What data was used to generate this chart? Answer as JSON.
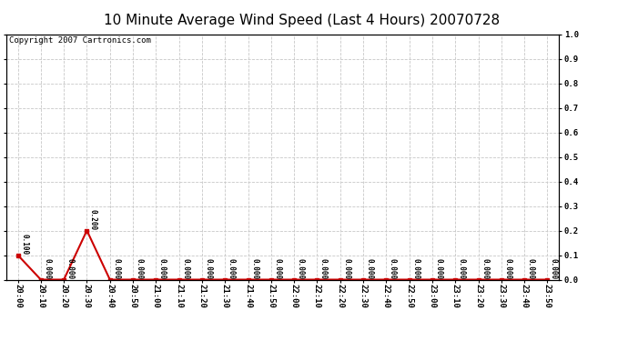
{
  "title": "10 Minute Average Wind Speed (Last 4 Hours) 20070728",
  "copyright_text": "Copyright 2007 Cartronics.com",
  "x_labels": [
    "20:00",
    "20:10",
    "20:20",
    "20:30",
    "20:40",
    "20:50",
    "21:00",
    "21:10",
    "21:20",
    "21:30",
    "21:40",
    "21:50",
    "22:00",
    "22:10",
    "22:20",
    "22:30",
    "22:40",
    "22:50",
    "23:00",
    "23:10",
    "23:20",
    "23:30",
    "23:40",
    "23:50"
  ],
  "y_values": [
    0.1,
    0.0,
    0.0,
    0.2,
    0.0,
    0.0,
    0.0,
    0.0,
    0.0,
    0.0,
    0.0,
    0.0,
    0.0,
    0.0,
    0.0,
    0.0,
    0.0,
    0.0,
    0.0,
    0.0,
    0.0,
    0.0,
    0.0,
    0.0
  ],
  "data_labels": [
    "0.100",
    "0.000",
    "0.000",
    "0.200",
    "0.000",
    "0.000",
    "0.000",
    "0.000",
    "0.000",
    "0.000",
    "0.000",
    "0.000",
    "0.000",
    "0.000",
    "0.000",
    "0.000",
    "0.000",
    "0.000",
    "0.000",
    "0.000",
    "0.000",
    "0.000",
    "0.000",
    "0.000"
  ],
  "line_color": "#cc0000",
  "marker_color": "#cc0000",
  "background_color": "#ffffff",
  "plot_bg_color": "#ffffff",
  "grid_color": "#c8c8c8",
  "ylim": [
    0.0,
    1.0
  ],
  "yticks": [
    0.0,
    0.1,
    0.2,
    0.3,
    0.4,
    0.5,
    0.6,
    0.7,
    0.8,
    0.9,
    1.0
  ],
  "title_fontsize": 11,
  "copyright_fontsize": 6.5,
  "tick_fontsize": 6.5,
  "data_label_fontsize": 5.5
}
